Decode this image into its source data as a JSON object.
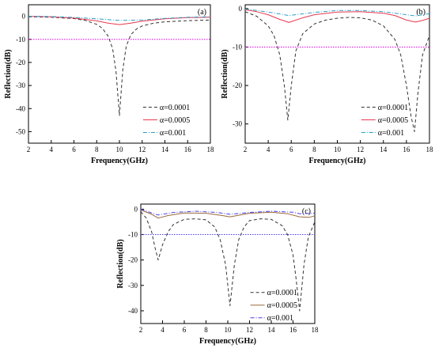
{
  "chart_data": [
    {
      "type": "line",
      "panel_label": "(a)",
      "xlabel": "Frequency(GHz)",
      "ylabel": "Reflection(dB)",
      "xlim": [
        2,
        18
      ],
      "ylim": [
        -55,
        5
      ],
      "xticks": [
        "2",
        "4",
        "6",
        "8",
        "10",
        "12",
        "14",
        "16",
        "18"
      ],
      "yticks": [
        "0",
        "-10",
        "-20",
        "-30",
        "-40",
        "-50"
      ],
      "reference_line": {
        "y": -10,
        "color": "#e000e0"
      },
      "legend_position": "lower-right",
      "series": [
        {
          "name": "α=0.0001",
          "color": "#333333",
          "style": "dash",
          "x": [
            2,
            4,
            6,
            7,
            8,
            8.5,
            9,
            9.4,
            9.7,
            10,
            10.3,
            10.6,
            11,
            11.5,
            12,
            13,
            14,
            16,
            18
          ],
          "y": [
            -0.2,
            -0.4,
            -1,
            -1.8,
            -3.5,
            -5.2,
            -8.5,
            -14,
            -24,
            -43,
            -23,
            -13,
            -8,
            -5.5,
            -4.2,
            -3,
            -2.4,
            -1.9,
            -1.6
          ]
        },
        {
          "name": "α=0.0005",
          "color": "#e8384f",
          "style": "solid",
          "x": [
            2,
            4,
            6,
            8,
            9,
            10,
            11,
            12,
            14,
            16,
            18
          ],
          "y": [
            0,
            -0.2,
            -0.8,
            -2,
            -3,
            -3.6,
            -3,
            -2.1,
            -1.1,
            -0.6,
            -0.4
          ]
        },
        {
          "name": "α=0.001",
          "color": "#2aa1c9",
          "style": "dashdot",
          "x": [
            2,
            4,
            6,
            8,
            10,
            12,
            14,
            16,
            18
          ],
          "y": [
            0,
            -0.1,
            -0.5,
            -1.1,
            -1.8,
            -1.6,
            -0.9,
            -0.4,
            -0.2
          ]
        }
      ]
    },
    {
      "type": "line",
      "panel_label": "(b)",
      "xlabel": "Frequency(GHz)",
      "ylabel": "Reflection(dB)",
      "xlim": [
        2,
        18
      ],
      "ylim": [
        -35,
        1
      ],
      "xticks": [
        "2",
        "4",
        "6",
        "8",
        "10",
        "12",
        "14",
        "16",
        "18"
      ],
      "yticks": [
        "0",
        "-10",
        "-20",
        "-30"
      ],
      "reference_line": {
        "y": -10,
        "color": "#e000e0"
      },
      "legend_position": "lower-right",
      "series": [
        {
          "name": "α=0.0001",
          "color": "#333333",
          "style": "dash",
          "x": [
            2,
            3,
            4,
            4.5,
            5,
            5.4,
            5.7,
            6,
            6.4,
            7,
            8,
            9,
            10,
            11,
            12,
            13,
            14,
            15,
            15.5,
            16,
            16.4,
            16.7,
            17,
            17.4,
            18
          ],
          "y": [
            -0.8,
            -2,
            -4.5,
            -7,
            -12,
            -20,
            -29,
            -20,
            -11,
            -6.5,
            -4,
            -3,
            -2.5,
            -2.3,
            -2.4,
            -3,
            -4.5,
            -8,
            -12,
            -20,
            -28,
            -32,
            -22,
            -12,
            -7
          ]
        },
        {
          "name": "α=0.0005",
          "color": "#e8384f",
          "style": "solid",
          "x": [
            2,
            3,
            4,
            5,
            5.8,
            7,
            8,
            10,
            12,
            14,
            15,
            16,
            16.8,
            17.5,
            18
          ],
          "y": [
            -0.3,
            -0.8,
            -1.6,
            -2.8,
            -3.6,
            -2.4,
            -1.6,
            -0.9,
            -0.8,
            -1.2,
            -1.8,
            -3,
            -3.5,
            -3,
            -2.5
          ]
        },
        {
          "name": "α=0.001",
          "color": "#2aa1c9",
          "style": "dashdot",
          "x": [
            2,
            4,
            5.8,
            8,
            10,
            12,
            14,
            16,
            16.8,
            18
          ],
          "y": [
            -0.1,
            -0.9,
            -1.8,
            -1,
            -0.5,
            -0.5,
            -0.8,
            -1.6,
            -1.9,
            -1.3
          ]
        }
      ]
    },
    {
      "type": "line",
      "panel_label": "(c)",
      "xlabel": "Frequency(GHz)",
      "ylabel": "Reflection(dB)",
      "xlim": [
        2,
        18
      ],
      "ylim": [
        -45,
        2
      ],
      "xticks": [
        "2",
        "4",
        "6",
        "8",
        "10",
        "12",
        "14",
        "16",
        "18"
      ],
      "yticks": [
        "0",
        "-10",
        "-20",
        "-30",
        "-40"
      ],
      "reference_line": {
        "y": -10,
        "color": "#4a3cf0"
      },
      "legend_position": "lower-right",
      "series": [
        {
          "name": "α=0.0001",
          "color": "#333333",
          "style": "dash",
          "x": [
            2,
            2.5,
            3,
            3.3,
            3.6,
            4,
            4.5,
            5,
            6,
            7,
            8,
            8.8,
            9.3,
            9.8,
            10.2,
            10.6,
            11,
            11.5,
            12,
            13,
            14,
            15,
            15.5,
            16,
            16.3,
            16.6,
            17,
            17.4,
            18
          ],
          "y": [
            -1,
            -3.5,
            -9,
            -15,
            -20,
            -14,
            -9,
            -6,
            -4,
            -3.8,
            -4.2,
            -7,
            -12,
            -22,
            -38,
            -22,
            -12,
            -7,
            -4.5,
            -3.8,
            -4,
            -6.5,
            -10,
            -18,
            -28,
            -40,
            -22,
            -11,
            -5
          ]
        },
        {
          "name": "α=0.0005",
          "color": "#9c6a3a",
          "style": "solid",
          "x": [
            2,
            3,
            3.6,
            4.5,
            6,
            8,
            9.5,
            10.2,
            11,
            12,
            14,
            15.5,
            16.6,
            17.5,
            18
          ],
          "y": [
            -0.3,
            -2,
            -3.5,
            -2.5,
            -1.5,
            -1.6,
            -2.5,
            -3,
            -2.4,
            -1.6,
            -1.2,
            -1.8,
            -3,
            -3.2,
            -2.6
          ]
        },
        {
          "name": "α=0.001",
          "color": "#4a3cf0",
          "style": "dashdot",
          "x": [
            2,
            3,
            3.6,
            5,
            7,
            9,
            10.2,
            12,
            14,
            16,
            16.6,
            18
          ],
          "y": [
            0,
            -1.5,
            -2.3,
            -1.3,
            -0.8,
            -1.3,
            -2,
            -1.3,
            -0.8,
            -1.2,
            -1.8,
            -1.6
          ]
        }
      ]
    }
  ]
}
